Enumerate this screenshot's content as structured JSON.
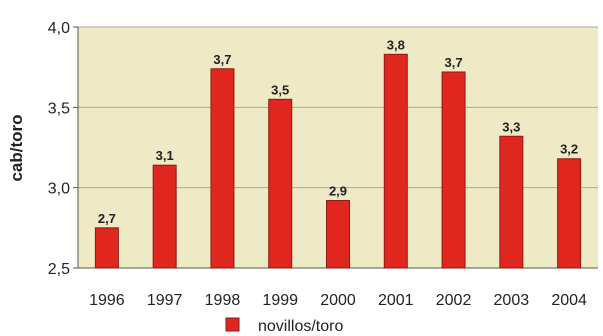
{
  "chart_data": {
    "type": "bar",
    "categories": [
      "1996",
      "1997",
      "1998",
      "1999",
      "2000",
      "2001",
      "2002",
      "2003",
      "2004"
    ],
    "series": [
      {
        "name": "novillos/toro",
        "values": [
          2.75,
          3.14,
          3.74,
          3.55,
          2.92,
          3.83,
          3.72,
          3.32,
          3.18
        ]
      }
    ],
    "data_labels": [
      "2,7",
      "3,1",
      "3,7",
      "3,5",
      "2,9",
      "3,8",
      "3,7",
      "3,3",
      "3,2"
    ],
    "ylabel": "cab/toro",
    "ylim": [
      2.5,
      4.0
    ],
    "yticks": [
      2.5,
      3.0,
      3.5,
      4.0
    ],
    "ytick_labels": [
      "2,5",
      "3,0",
      "3,5",
      "4,0"
    ],
    "grid": true,
    "legend_position": "bottom-center",
    "colors": {
      "bar": "#e0271f",
      "bar_border": "#8e1a14",
      "plot_background": "#eeeac6",
      "gridline": "#a9a8a0"
    }
  }
}
